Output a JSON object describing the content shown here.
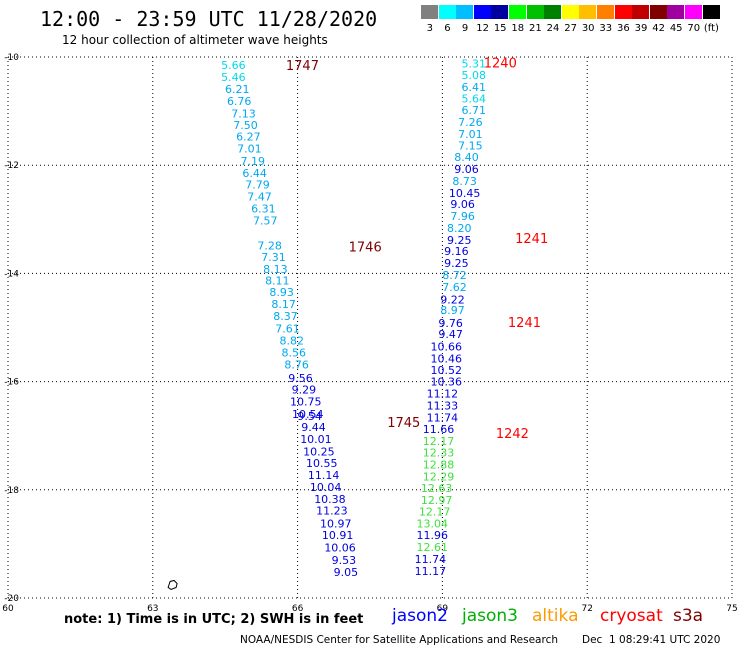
{
  "header": {
    "title": "12:00 - 23:59 UTC 11/28/2020",
    "subtitle": "12 hour collection of altimeter wave heights"
  },
  "legend": {
    "labels": [
      "3",
      "6",
      "9",
      "12",
      "15",
      "18",
      "21",
      "24",
      "27",
      "30",
      "33",
      "36",
      "39",
      "42",
      "45",
      "70",
      "(ft)"
    ],
    "colors": [
      "#808080",
      "#00ffff",
      "#00bfff",
      "#0000ff",
      "#0000a0",
      "#00ff00",
      "#00c000",
      "#008000",
      "#ffff00",
      "#ffbf00",
      "#ff8000",
      "#ff0000",
      "#c00000",
      "#800000",
      "#a000a0",
      "#ff00ff",
      "#000000"
    ]
  },
  "footer": {
    "note": "note: 1) Time is in UTC; 2) SWH is in feet",
    "satellites": [
      {
        "name": "jason2",
        "color": "#0000ff"
      },
      {
        "name": "jason3",
        "color": "#00b000"
      },
      {
        "name": "altika",
        "color": "#ff9900"
      },
      {
        "name": "cryosat",
        "color": "#ff0000"
      },
      {
        "name": "s3a",
        "color": "#800000"
      }
    ],
    "credit": "NOAA/NESDIS Center for Satellite Applications and Research",
    "timestamp": "Dec  1 08:29:41 UTC 2020"
  },
  "chart_data": {
    "type": "scatter",
    "title": "12:00 - 23:59 UTC 11/28/2020",
    "subtitle": "12 hour collection of altimeter wave heights",
    "x_ticks": [
      "60",
      "63",
      "66",
      "69",
      "72",
      "75"
    ],
    "y_ticks": [
      "-10",
      "-12",
      "-14",
      "-16",
      "-18",
      "-20"
    ],
    "xlim": [
      60,
      75
    ],
    "ylim": [
      -20,
      -10
    ],
    "grid": true,
    "units": "SWH in feet, time in UTC",
    "track_times": [
      {
        "label": "1747",
        "lon": 66.1,
        "lat": -10.15,
        "color": "#800000"
      },
      {
        "label": "1746",
        "lon": 67.4,
        "lat": -13.5,
        "color": "#800000"
      },
      {
        "label": "1745",
        "lon": 68.2,
        "lat": -16.75,
        "color": "#800000"
      },
      {
        "label": "1240",
        "lon": 70.2,
        "lat": -10.1,
        "color": "#ff0000"
      },
      {
        "label": "1241",
        "lon": 70.85,
        "lat": -13.35,
        "color": "#ff0000"
      },
      {
        "label": "1241",
        "lon": 70.7,
        "lat": -14.9,
        "color": "#ff0000"
      },
      {
        "label": "1242",
        "lon": 70.45,
        "lat": -16.95,
        "color": "#ff0000"
      }
    ],
    "tracks": [
      {
        "name": "",
        "points": [
          {
            "lon": 64.67,
            "lat": -10.15,
            "swh": "5.66"
          },
          {
            "lon": 64.67,
            "lat": -10.37,
            "swh": "5.46"
          },
          {
            "lon": 64.75,
            "lat": -10.59,
            "swh": "6.21"
          },
          {
            "lon": 64.79,
            "lat": -10.81,
            "swh": "6.76"
          },
          {
            "lon": 64.88,
            "lat": -11.04,
            "swh": "7.13"
          },
          {
            "lon": 64.92,
            "lat": -11.26,
            "swh": "7.50"
          },
          {
            "lon": 64.98,
            "lat": -11.47,
            "swh": "6.27"
          },
          {
            "lon": 65.0,
            "lat": -11.69,
            "swh": "7.01"
          },
          {
            "lon": 65.07,
            "lat": -11.92,
            "swh": "7.19"
          },
          {
            "lon": 65.11,
            "lat": -12.14,
            "swh": "6.44"
          },
          {
            "lon": 65.17,
            "lat": -12.36,
            "swh": "7.79"
          },
          {
            "lon": 65.21,
            "lat": -12.58,
            "swh": "7.47"
          },
          {
            "lon": 65.29,
            "lat": -12.8,
            "swh": "6.31"
          },
          {
            "lon": 65.33,
            "lat": -13.02,
            "swh": "7.57"
          },
          {
            "lon": 65.42,
            "lat": -13.48,
            "swh": "7.28"
          },
          {
            "lon": 65.5,
            "lat": -13.7,
            "swh": "7.31"
          },
          {
            "lon": 65.54,
            "lat": -13.92,
            "swh": "8.13"
          },
          {
            "lon": 65.58,
            "lat": -14.13,
            "swh": "8.11"
          },
          {
            "lon": 65.67,
            "lat": -14.34,
            "swh": "8.93"
          },
          {
            "lon": 65.71,
            "lat": -14.57,
            "swh": "8.17"
          },
          {
            "lon": 65.75,
            "lat": -14.79,
            "swh": "8.37"
          },
          {
            "lon": 65.79,
            "lat": -15.02,
            "swh": "7.61"
          },
          {
            "lon": 65.88,
            "lat": -15.24,
            "swh": "8.82"
          },
          {
            "lon": 65.92,
            "lat": -15.46,
            "swh": "8.56"
          },
          {
            "lon": 65.98,
            "lat": -15.68,
            "swh": "8.76"
          },
          {
            "lon": 66.06,
            "lat": -15.93,
            "swh": "9.56"
          },
          {
            "lon": 66.13,
            "lat": -16.15,
            "swh": "9.29"
          },
          {
            "lon": 66.17,
            "lat": -16.37,
            "swh": "10.75"
          },
          {
            "lon": 66.21,
            "lat": -16.6,
            "swh": "10.54"
          },
          {
            "lon": 66.25,
            "lat": -16.64,
            "swh": "9.54"
          },
          {
            "lon": 66.33,
            "lat": -16.84,
            "swh": "9.44"
          },
          {
            "lon": 66.38,
            "lat": -17.06,
            "swh": "10.01"
          },
          {
            "lon": 66.44,
            "lat": -17.29,
            "swh": "10.25"
          },
          {
            "lon": 66.5,
            "lat": -17.5,
            "swh": "10.55"
          },
          {
            "lon": 66.54,
            "lat": -17.73,
            "swh": "11.14"
          },
          {
            "lon": 66.58,
            "lat": -17.95,
            "swh": "10.04"
          },
          {
            "lon": 66.67,
            "lat": -18.17,
            "swh": "10.38"
          },
          {
            "lon": 66.71,
            "lat": -18.38,
            "swh": "11.23"
          },
          {
            "lon": 66.79,
            "lat": -18.62,
            "swh": "10.97"
          },
          {
            "lon": 66.83,
            "lat": -18.84,
            "swh": "10.91"
          },
          {
            "lon": 66.88,
            "lat": -19.07,
            "swh": "10.06"
          },
          {
            "lon": 66.96,
            "lat": -19.3,
            "swh": "9.53"
          },
          {
            "lon": 67.0,
            "lat": -19.52,
            "swh": "9.05"
          }
        ]
      },
      {
        "name": "",
        "points": [
          {
            "lon": 69.65,
            "lat": -10.12,
            "swh": "5.31"
          },
          {
            "lon": 69.65,
            "lat": -10.33,
            "swh": "5.08"
          },
          {
            "lon": 69.65,
            "lat": -10.55,
            "swh": "6.41"
          },
          {
            "lon": 69.65,
            "lat": -10.77,
            "swh": "5.64"
          },
          {
            "lon": 69.65,
            "lat": -10.98,
            "swh": "6.71"
          },
          {
            "lon": 69.58,
            "lat": -11.2,
            "swh": "7.26"
          },
          {
            "lon": 69.58,
            "lat": -11.42,
            "swh": "7.01"
          },
          {
            "lon": 69.58,
            "lat": -11.64,
            "swh": "7.15"
          },
          {
            "lon": 69.5,
            "lat": -11.85,
            "swh": "8.40"
          },
          {
            "lon": 69.5,
            "lat": -12.07,
            "swh": "9.06"
          },
          {
            "lon": 69.46,
            "lat": -12.29,
            "swh": "8.73"
          },
          {
            "lon": 69.46,
            "lat": -12.51,
            "swh": "10.45"
          },
          {
            "lon": 69.42,
            "lat": -12.72,
            "swh": "9.06"
          },
          {
            "lon": 69.42,
            "lat": -12.94,
            "swh": "7.96"
          },
          {
            "lon": 69.35,
            "lat": -13.16,
            "swh": "8.20"
          },
          {
            "lon": 69.35,
            "lat": -13.38,
            "swh": "9.25"
          },
          {
            "lon": 69.29,
            "lat": -13.59,
            "swh": "9.16"
          },
          {
            "lon": 69.29,
            "lat": -13.81,
            "swh": "9.25"
          },
          {
            "lon": 69.25,
            "lat": -14.03,
            "swh": "8.72"
          },
          {
            "lon": 69.25,
            "lat": -14.25,
            "swh": "7.62"
          },
          {
            "lon": 69.21,
            "lat": -14.48,
            "swh": "9.22"
          },
          {
            "lon": 69.21,
            "lat": -14.68,
            "swh": "8.97"
          },
          {
            "lon": 69.17,
            "lat": -14.92,
            "swh": "9.76"
          },
          {
            "lon": 69.17,
            "lat": -15.12,
            "swh": "9.47"
          },
          {
            "lon": 69.08,
            "lat": -15.35,
            "swh": "10.66"
          },
          {
            "lon": 69.08,
            "lat": -15.57,
            "swh": "10.46"
          },
          {
            "lon": 69.08,
            "lat": -15.79,
            "swh": "10.52"
          },
          {
            "lon": 69.08,
            "lat": -16.0,
            "swh": "10.36"
          },
          {
            "lon": 69.0,
            "lat": -16.22,
            "swh": "11.12"
          },
          {
            "lon": 69.0,
            "lat": -16.44,
            "swh": "11.33"
          },
          {
            "lon": 69.0,
            "lat": -16.66,
            "swh": "11.74"
          },
          {
            "lon": 68.92,
            "lat": -16.88,
            "swh": "11.66"
          }
        ]
      },
      {
        "name": "",
        "points": [
          {
            "lon": 68.92,
            "lat": -17.1,
            "swh": "12.17"
          },
          {
            "lon": 68.92,
            "lat": -17.31,
            "swh": "12.33"
          },
          {
            "lon": 68.92,
            "lat": -17.53,
            "swh": "12.88"
          },
          {
            "lon": 68.92,
            "lat": -17.75,
            "swh": "12.29"
          },
          {
            "lon": 68.88,
            "lat": -17.97,
            "swh": "12.63"
          },
          {
            "lon": 68.88,
            "lat": -18.19,
            "swh": "12.97"
          },
          {
            "lon": 68.84,
            "lat": -18.4,
            "swh": "12.17"
          },
          {
            "lon": 68.79,
            "lat": -18.62,
            "swh": "13.04"
          },
          {
            "lon": 68.79,
            "lat": -19.06,
            "swh": "12.61"
          }
        ]
      },
      {
        "name": "",
        "points": [
          {
            "lon": 68.79,
            "lat": -18.84,
            "swh": "11.96"
          },
          {
            "lon": 68.75,
            "lat": -19.28,
            "swh": "11.74"
          },
          {
            "lon": 68.75,
            "lat": -19.5,
            "swh": "11.17"
          }
        ]
      }
    ]
  }
}
